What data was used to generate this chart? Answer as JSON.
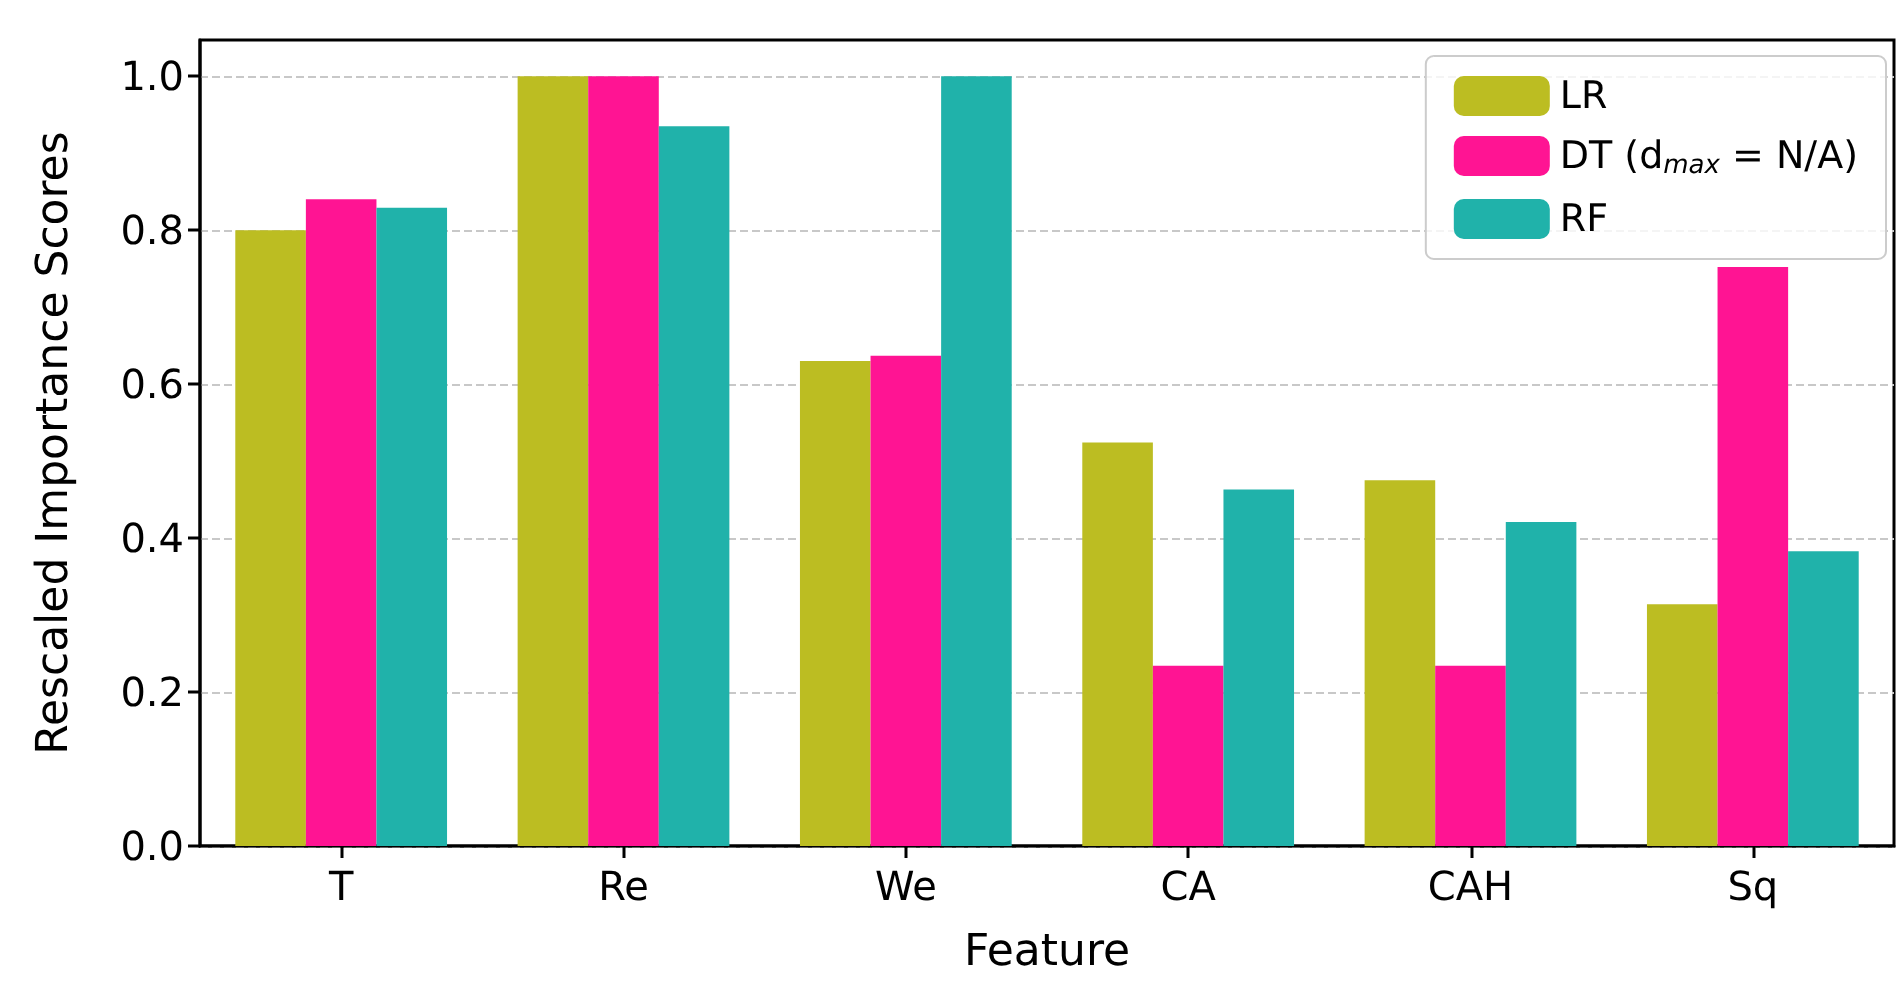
{
  "chart_data": {
    "type": "bar",
    "xlabel": "Feature",
    "ylabel": "Rescaled Importance Scores",
    "categories": [
      "T",
      "Re",
      "We",
      "CA",
      "CAH",
      "Sq"
    ],
    "series": [
      {
        "name": "LR",
        "color": "#bcbd22",
        "values": [
          0.8,
          1.0,
          0.63,
          0.524,
          0.475,
          0.314
        ]
      },
      {
        "name": "DT (d$_{max}$ = N/A)",
        "color": "#ff1493",
        "values": [
          0.84,
          1.0,
          0.637,
          0.234,
          0.234,
          0.752
        ]
      },
      {
        "name": "RF",
        "color": "#20b2aa",
        "values": [
          0.829,
          0.935,
          1.0,
          0.463,
          0.421,
          0.383
        ]
      }
    ],
    "ylim": [
      0,
      1.047
    ],
    "yticks": [
      {
        "value": 0,
        "label": "0.0"
      },
      {
        "value": 0.2,
        "label": "0.2"
      },
      {
        "value": 0.4,
        "label": "0.4"
      },
      {
        "value": 0.6,
        "label": "0.6"
      },
      {
        "value": 0.8,
        "label": "0.8"
      },
      {
        "value": 1.0,
        "label": "1.0"
      }
    ],
    "grid": "y",
    "legend": "top right"
  }
}
